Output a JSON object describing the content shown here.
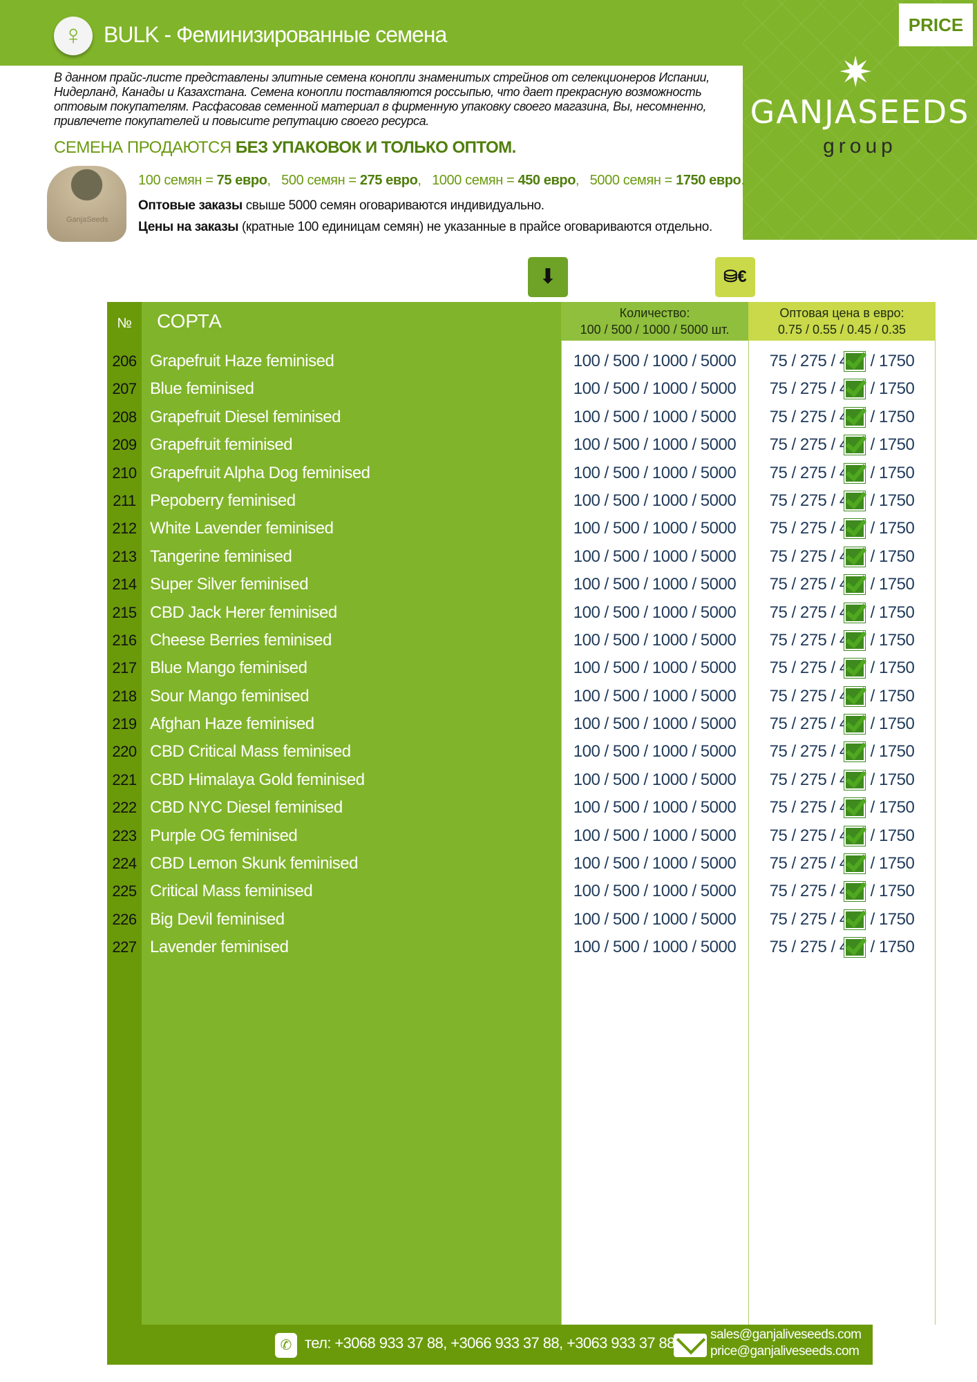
{
  "header": {
    "title": "BULK - Феминизированные семена",
    "icon": "female-symbol-icon"
  },
  "logo": {
    "price_label": "PRICE",
    "brand": "GANJASEEDS",
    "group": "group"
  },
  "intro": "В данном прайс-листе представлены элитные семена конопли знаменитых стрейнов от селекционеров Испании, Нидерланд, Канады и Казахстана. Семена конопли поставляются россыпью, что дает прекрасную возможность оптовым покупателям. Расфасовав семенной материал в фирменную упаковку своего магазина, Вы, несомненно, привлечете покупателей и повысите репутацию своего ресурса.",
  "sold": {
    "prefix": "СЕМЕНА ПРОДАЮТСЯ ",
    "bold": "БЕЗ УПАКОВОК И ТОЛЬКО ОПТОМ."
  },
  "prices": [
    {
      "qty": "100 семян = ",
      "price": "75 евро"
    },
    {
      "qty": "500 семян = ",
      "price": "275 евро"
    },
    {
      "qty": "1000 семян = ",
      "price": "450 евро"
    },
    {
      "qty": "5000 семян = ",
      "price": "1750 евро"
    }
  ],
  "note1": {
    "bold": "Оптовые заказы",
    "text": " свыше 5000 семян оговариваются индивидуально."
  },
  "note2": {
    "bold": "Цены на заказы",
    "text": " (кратные 100 единицам семян) не указанные в прайсе оговариваются отдельно."
  },
  "table": {
    "h_no": "№",
    "h_name": "СОРТА",
    "h_qty1": "Количество:",
    "h_qty2": "100 / 500 / 1000 / 5000 шт.",
    "h_pr1": "Оптовая цена в евро:",
    "h_pr2": "0.75 / 0.55 / 0.45 / 0.35",
    "rows": [
      {
        "no": "206",
        "name": "Grapefruit Haze feminised"
      },
      {
        "no": "207",
        "name": "Blue feminised"
      },
      {
        "no": "208",
        "name": "Grapefruit Diesel feminised"
      },
      {
        "no": "209",
        "name": "Grapefruit feminised"
      },
      {
        "no": "210",
        "name": "Grapefruit Alpha Dog feminised"
      },
      {
        "no": "211",
        "name": "Pepoberry feminised"
      },
      {
        "no": "212",
        "name": "White Lavender feminised"
      },
      {
        "no": "213",
        "name": "Tangerine feminised"
      },
      {
        "no": "214",
        "name": "Super Silver feminised"
      },
      {
        "no": "215",
        "name": "CBD Jack Herer feminised"
      },
      {
        "no": "216",
        "name": "Cheese Berries feminised"
      },
      {
        "no": "217",
        "name": "Blue Mango feminised"
      },
      {
        "no": "218",
        "name": "Sour Mango feminised"
      },
      {
        "no": "219",
        "name": "Afghan Haze feminised"
      },
      {
        "no": "220",
        "name": "CBD Critical Mass feminised"
      },
      {
        "no": "221",
        "name": "CBD Himalaya Gold feminised"
      },
      {
        "no": "222",
        "name": "CBD NYC Diesel feminised"
      },
      {
        "no": "223",
        "name": "Purple OG feminised"
      },
      {
        "no": "224",
        "name": "CBD Lemon Skunk feminised"
      },
      {
        "no": "225",
        "name": "Critical Mass feminised"
      },
      {
        "no": "226",
        "name": "Big Devil feminised"
      },
      {
        "no": "227",
        "name": "Lavender feminised"
      }
    ],
    "qty": "100 / 500 / 1000 / 5000",
    "price": "75 / 275 / 450 / 1750"
  },
  "footer": {
    "tel": "тел: +3068 933 37 88, +3066 933 37 88, +3063 933 37 88",
    "email1": "sales@ganjaliveseeds.com",
    "email2": "price@ganjaliveseeds.com"
  },
  "colors": {
    "green": "#80b42a",
    "dark_green": "#6a9a0a",
    "yellow_green": "#c9d94a"
  }
}
